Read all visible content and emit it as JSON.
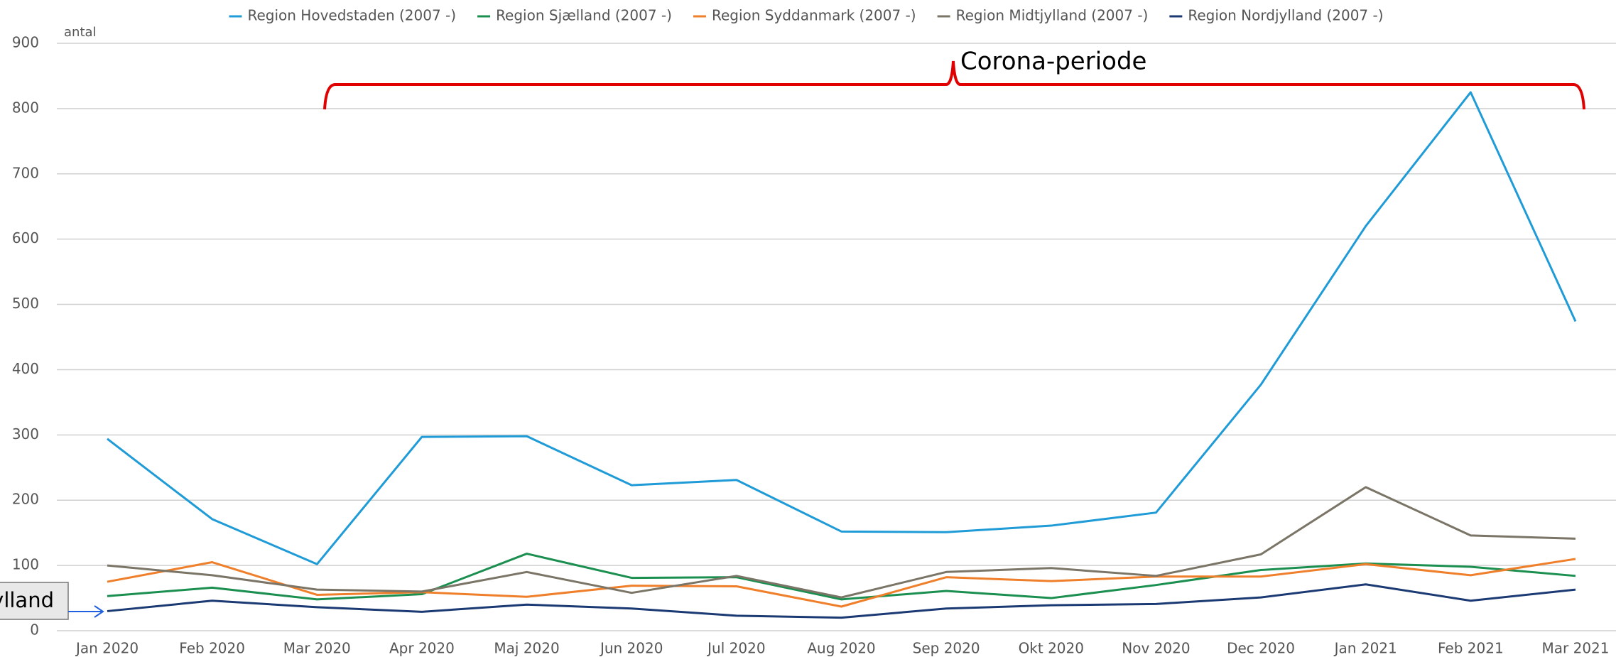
{
  "chart_data": {
    "type": "line",
    "y_label": "antal",
    "annotation": "Corona-periode",
    "callout": "ylland",
    "categories": [
      "Jan 2020",
      "Feb 2020",
      "Mar 2020",
      "Apr 2020",
      "Maj 2020",
      "Jun 2020",
      "Jul 2020",
      "Aug 2020",
      "Sep 2020",
      "Okt 2020",
      "Nov 2020",
      "Dec 2020",
      "Jan 2021",
      "Feb 2021",
      "Mar 2021"
    ],
    "series": [
      {
        "name": "Region Hovedstaden (2007 -)",
        "color": "#1f9bd7",
        "values": [
          294,
          171,
          102,
          297,
          298,
          223,
          231,
          152,
          151,
          161,
          181,
          377,
          620,
          825,
          474
        ]
      },
      {
        "name": "Region Sjælland (2007 -)",
        "color": "#1a8f4f",
        "values": [
          53,
          66,
          48,
          56,
          118,
          81,
          82,
          48,
          61,
          50,
          70,
          93,
          103,
          98,
          84
        ]
      },
      {
        "name": "Region Syddanmark (2007 -)",
        "color": "#ef7f2a",
        "values": [
          75,
          105,
          55,
          59,
          52,
          69,
          68,
          37,
          82,
          76,
          83,
          83,
          102,
          85,
          110
        ]
      },
      {
        "name": "Region Midtjylland (2007 -)",
        "color": "#7a7566",
        "values": [
          100,
          85,
          63,
          60,
          90,
          58,
          84,
          51,
          90,
          96,
          84,
          117,
          220,
          146,
          141
        ]
      },
      {
        "name": "Region Nordjylland (2007 -)",
        "color": "#1b3a73",
        "values": [
          30,
          46,
          36,
          29,
          40,
          34,
          23,
          20,
          34,
          39,
          41,
          51,
          71,
          46,
          63
        ]
      }
    ],
    "ylim": [
      0,
      900
    ],
    "yticks": [
      0,
      100,
      200,
      300,
      400,
      500,
      600,
      700,
      800,
      900
    ],
    "grid": true
  }
}
